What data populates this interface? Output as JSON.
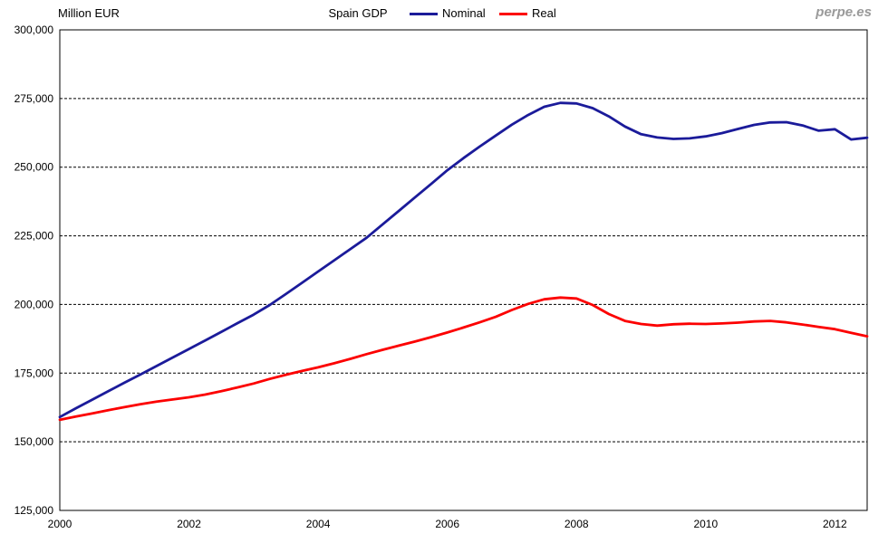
{
  "header": {
    "y_axis_title": "Million EUR",
    "title": "Spain GDP",
    "watermark": "perpe.es"
  },
  "legend": [
    {
      "label": "Nominal",
      "color": "#1b1b9a"
    },
    {
      "label": "Real",
      "color": "#fc0000"
    }
  ],
  "chart_data": {
    "type": "line",
    "title": "Spain GDP",
    "ylabel": "Million EUR",
    "xlabel": "",
    "grid": "horizontal-dashed",
    "legend_position": "top",
    "xlim": [
      2000,
      2012.5
    ],
    "ylim": [
      125000,
      300000
    ],
    "y_tick_step": 25000,
    "y_tick_labels": [
      "125,000",
      "150,000",
      "175,000",
      "200,000",
      "225,000",
      "250,000",
      "275,000",
      "300,000"
    ],
    "x_ticks": [
      2000,
      2002,
      2004,
      2006,
      2008,
      2010,
      2012
    ],
    "x_unit": "year (quarterly data)",
    "x": [
      2000,
      2000.25,
      2000.5,
      2000.75,
      2001,
      2001.25,
      2001.5,
      2001.75,
      2002,
      2002.25,
      2002.5,
      2002.75,
      2003,
      2003.25,
      2003.5,
      2003.75,
      2004,
      2004.25,
      2004.5,
      2004.75,
      2005,
      2005.25,
      2005.5,
      2005.75,
      2006,
      2006.25,
      2006.5,
      2006.75,
      2007,
      2007.25,
      2007.5,
      2007.75,
      2008,
      2008.25,
      2008.5,
      2008.75,
      2009,
      2009.25,
      2009.5,
      2009.75,
      2010,
      2010.25,
      2010.5,
      2010.75,
      2011,
      2011.25,
      2011.5,
      2011.75,
      2012,
      2012.25,
      2012.5
    ],
    "series": [
      {
        "name": "Nominal",
        "color": "#1b1b9a",
        "values": [
          159000,
          162200,
          165300,
          168400,
          171500,
          174500,
          177600,
          180700,
          183800,
          186900,
          190000,
          193200,
          196300,
          199800,
          203800,
          207900,
          212000,
          216100,
          220200,
          224300,
          229200,
          234100,
          239000,
          243900,
          248900,
          253300,
          257500,
          261500,
          265500,
          269000,
          272000,
          273400,
          273200,
          271500,
          268500,
          264800,
          262000,
          260800,
          260300,
          260500,
          261200,
          262400,
          263900,
          265400,
          266300,
          266400,
          265200,
          263300,
          263800,
          260100,
          260700
        ]
      },
      {
        "name": "Real",
        "color": "#fc0000",
        "values": [
          158000,
          159200,
          160300,
          161500,
          162600,
          163700,
          164600,
          165400,
          166200,
          167200,
          168400,
          169800,
          171200,
          172900,
          174400,
          175800,
          177100,
          178600,
          180200,
          181900,
          183500,
          185000,
          186500,
          188100,
          189800,
          191600,
          193500,
          195500,
          198000,
          200200,
          201900,
          202500,
          202200,
          199800,
          196500,
          194000,
          192900,
          192300,
          192800,
          193000,
          192900,
          193100,
          193400,
          193800,
          194000,
          193500,
          192700,
          191800,
          191000,
          189700,
          188400
        ]
      }
    ]
  }
}
